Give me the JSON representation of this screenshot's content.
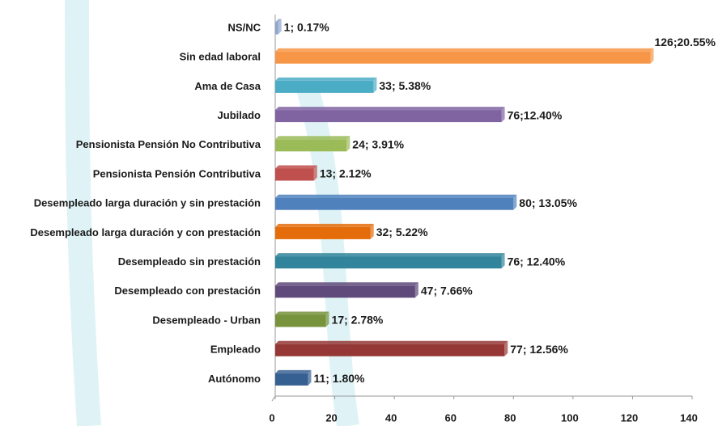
{
  "chart_data": {
    "type": "bar",
    "orientation": "horizontal",
    "categories": [
      "NS/NC",
      "Sin edad laboral",
      "Ama de Casa",
      "Jubilado",
      "Pensionista Pensión No Contributiva",
      "Pensionista Pensión Contributiva",
      "Desempleado larga duración y sin prestación",
      "Desempleado larga duración y con prestación",
      "Desempleado sin prestación",
      "Desempleado con prestación",
      "Desempleado - Urban",
      "Empleado",
      "Autónomo"
    ],
    "values": [
      1,
      126,
      33,
      76,
      24,
      13,
      80,
      32,
      76,
      47,
      17,
      77,
      11
    ],
    "value_labels": [
      "1; 0.17%",
      "126;20.55%",
      "33; 5.38%",
      "76;12.40%",
      "24; 3.91%",
      "13; 2.12%",
      "80; 13.05%",
      "32; 5.22%",
      "76; 12.40%",
      "47; 7.66%",
      "17; 2.78%",
      "77; 12.56%",
      "11; 1.80%"
    ],
    "colors": [
      "#8ea5cc",
      "#f79646",
      "#4bacc6",
      "#8064a2",
      "#9bbb59",
      "#c0504d",
      "#4f81bd",
      "#e46c0a",
      "#31849b",
      "#604a7b",
      "#77933c",
      "#953735",
      "#376092"
    ],
    "xlim": [
      0,
      140
    ],
    "xticks": [
      0,
      20,
      40,
      60,
      80,
      100,
      120,
      140
    ]
  }
}
